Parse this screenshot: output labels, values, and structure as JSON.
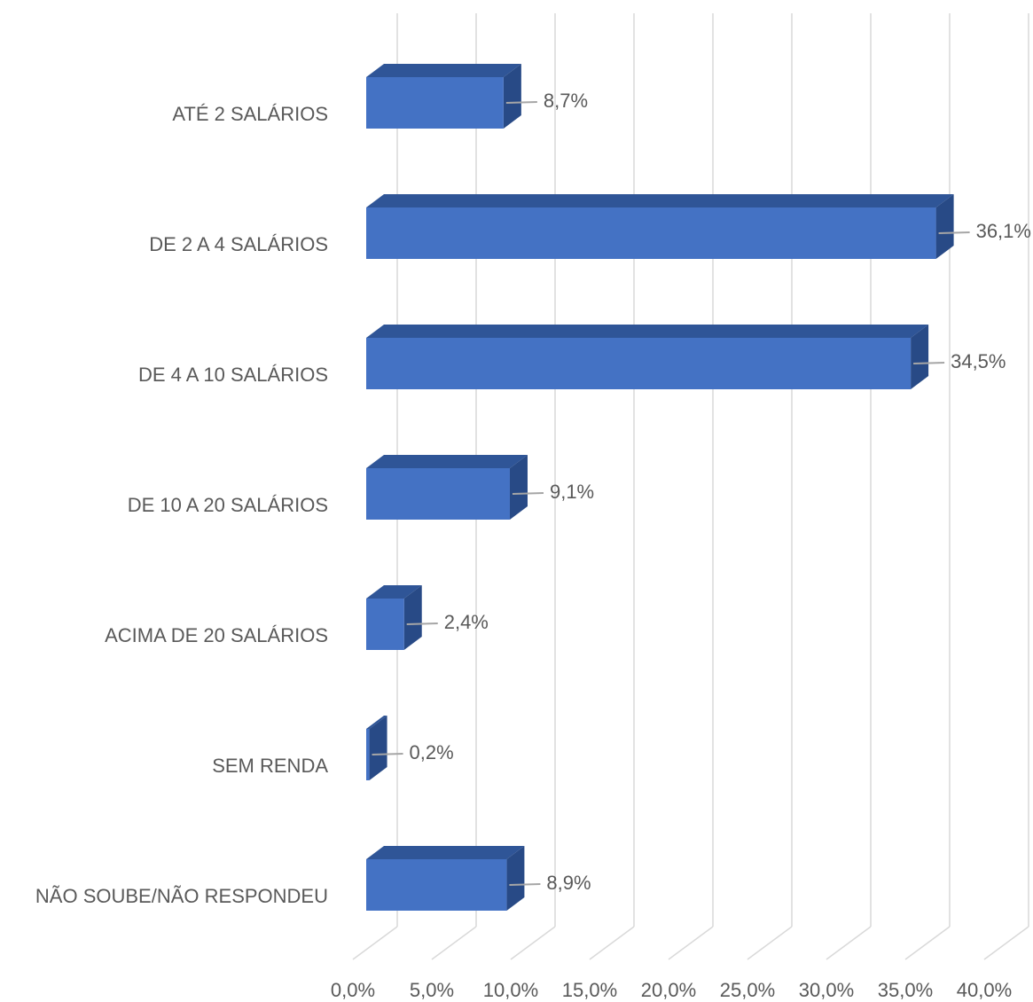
{
  "chart_data": {
    "type": "bar3d",
    "orientation": "horizontal",
    "categories": [
      "ATÉ 2 SALÁRIOS",
      "DE 2 A 4 SALÁRIOS",
      "DE 4 A 10 SALÁRIOS",
      "DE 10 A 20 SALÁRIOS",
      "ACIMA DE 20 SALÁRIOS",
      "SEM RENDA",
      "NÃO SOUBE/NÃO RESPONDEU"
    ],
    "values": [
      8.7,
      36.1,
      34.5,
      9.1,
      2.4,
      0.2,
      8.9
    ],
    "value_labels": [
      "8,7%",
      "36,1%",
      "34,5%",
      "9,1%",
      "2,4%",
      "0,2%",
      "8,9%"
    ],
    "color": "#4472c4",
    "xlim": [
      0,
      40
    ],
    "xticks": [
      {
        "value": 0,
        "label": "0,0%"
      },
      {
        "value": 5,
        "label": "5,0%"
      },
      {
        "value": 10,
        "label": "10,0%"
      },
      {
        "value": 15,
        "label": "15,0%"
      },
      {
        "value": 20,
        "label": "20,0%"
      },
      {
        "value": 25,
        "label": "25,0%"
      },
      {
        "value": 30,
        "label": "30,0%"
      },
      {
        "value": 35,
        "label": "35,0%"
      },
      {
        "value": 40,
        "label": "40,0%"
      }
    ],
    "grid": true
  }
}
